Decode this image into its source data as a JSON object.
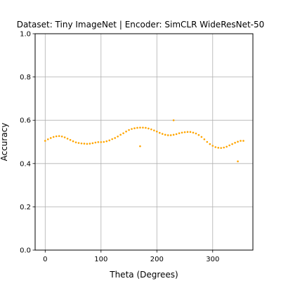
{
  "chart_data": {
    "type": "scatter",
    "title": "Dataset: Tiny ImageNet | Encoder: SimCLR WideResNet-50",
    "xlabel": "Theta (Degrees)",
    "ylabel": "Accuracy",
    "xlim": [
      -18,
      372
    ],
    "ylim": [
      0.0,
      1.0
    ],
    "xticks": [
      0,
      100,
      200,
      300
    ],
    "yticks": [
      0.0,
      0.2,
      0.4,
      0.6,
      0.8,
      1.0
    ],
    "xtick_labels": [
      "0",
      "100",
      "200",
      "300"
    ],
    "ytick_labels": [
      "0.0",
      "0.2",
      "0.4",
      "0.6",
      "0.8",
      "1.0"
    ],
    "grid": true,
    "point_color": "#ffa500",
    "series": [
      {
        "x": [
          0,
          5,
          10,
          15,
          20,
          25,
          30,
          35,
          40,
          45,
          50,
          55,
          60,
          65,
          70,
          75,
          80,
          85,
          90,
          95,
          100,
          105,
          110,
          115,
          120,
          125,
          130,
          135,
          140,
          145,
          150,
          155,
          160,
          165,
          170,
          175,
          180,
          185,
          190,
          195,
          200,
          205,
          210,
          215,
          220,
          225,
          230,
          235,
          240,
          245,
          250,
          255,
          260,
          265,
          270,
          275,
          280,
          285,
          290,
          295,
          300,
          305,
          310,
          315,
          320,
          325,
          330,
          335,
          340,
          345,
          350,
          355,
          170,
          230,
          345
        ],
        "y": [
          0.505,
          0.512,
          0.518,
          0.523,
          0.526,
          0.527,
          0.525,
          0.521,
          0.515,
          0.509,
          0.503,
          0.498,
          0.495,
          0.493,
          0.492,
          0.491,
          0.492,
          0.494,
          0.497,
          0.499,
          0.499,
          0.5,
          0.503,
          0.507,
          0.513,
          0.518,
          0.525,
          0.533,
          0.54,
          0.548,
          0.555,
          0.56,
          0.563,
          0.565,
          0.566,
          0.566,
          0.565,
          0.562,
          0.558,
          0.553,
          0.548,
          0.542,
          0.537,
          0.533,
          0.531,
          0.531,
          0.533,
          0.536,
          0.54,
          0.543,
          0.545,
          0.546,
          0.546,
          0.543,
          0.539,
          0.532,
          0.523,
          0.512,
          0.5,
          0.49,
          0.482,
          0.476,
          0.473,
          0.472,
          0.474,
          0.478,
          0.484,
          0.49,
          0.496,
          0.501,
          0.505,
          0.505,
          0.48,
          0.6,
          0.41
        ]
      }
    ]
  }
}
